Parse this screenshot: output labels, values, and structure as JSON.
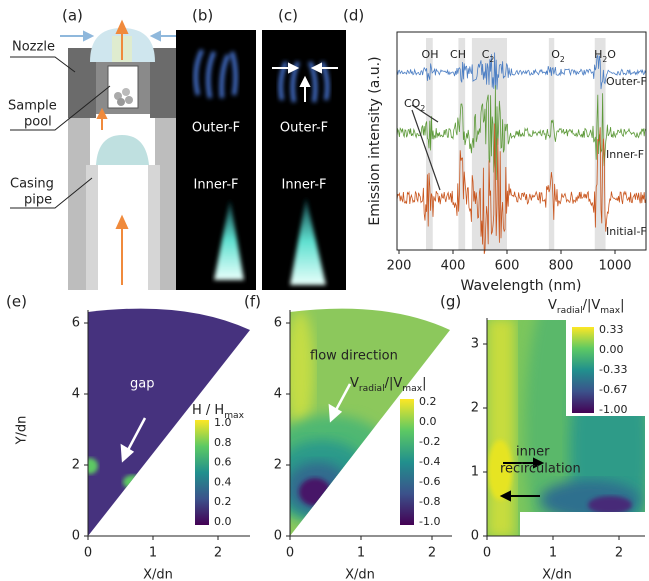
{
  "panels": {
    "a": {
      "label": "(a)",
      "nozzle": "Nozzle",
      "sample": [
        "Sample",
        "pool"
      ],
      "casing": [
        "Casing",
        "pipe"
      ]
    },
    "b": {
      "label": "(b)",
      "outer": "Outer-F",
      "inner": "Inner-F"
    },
    "c": {
      "label": "(c)",
      "outer": "Outer-F",
      "inner": "Inner-F"
    },
    "d": {
      "label": "(d)",
      "y_label": "Emission intensity (a.u.)",
      "x_label": "Wavelength (nm)",
      "x_ticks": [
        200,
        400,
        600,
        800,
        1000
      ],
      "species": [
        [
          "OH"
        ],
        [
          "CH"
        ],
        [
          "C",
          "2"
        ],
        [
          "O",
          "2"
        ],
        [
          "H",
          "2",
          "O"
        ]
      ],
      "co2": [
        "CO",
        "2"
      ],
      "traces": [
        "Outer-F",
        "Inner-F",
        "Initial-F"
      ]
    },
    "e": {
      "label": "(e)",
      "x_label": "X/dn",
      "y_label": "Y/dn",
      "x_ticks": [
        0,
        1,
        2
      ],
      "y_ticks": [
        0,
        2,
        4,
        6
      ],
      "colorbar_title": [
        "H / H",
        "max"
      ],
      "colorbar_ticks": [
        "1.0",
        "0.8",
        "0.6",
        "0.4",
        "0.2",
        "0.0"
      ],
      "annotation": "gap"
    },
    "f": {
      "label": "(f)",
      "x_label": "X/dn",
      "x_ticks": [
        0,
        1,
        2
      ],
      "y_ticks": [
        0,
        2,
        4,
        6
      ],
      "colorbar_title": [
        "V",
        "radial",
        "/|V",
        "max",
        "|"
      ],
      "colorbar_ticks": [
        "0.2",
        "0.0",
        "-0.2",
        "-0.4",
        "-0.6",
        "-0.8",
        "-1.0"
      ],
      "annotation": "flow direction"
    },
    "g": {
      "label": "(g)",
      "x_label": "X/dn",
      "x_ticks": [
        0,
        1,
        2
      ],
      "y_ticks": [
        0,
        1,
        2,
        3
      ],
      "colorbar_title": [
        "V",
        "radial",
        "/|V",
        "max",
        "|"
      ],
      "colorbar_ticks": [
        "0.33",
        "0.00",
        "-0.33",
        "-0.67",
        "-1.00"
      ],
      "annotation": [
        "inner",
        "recirculation"
      ]
    }
  }
}
